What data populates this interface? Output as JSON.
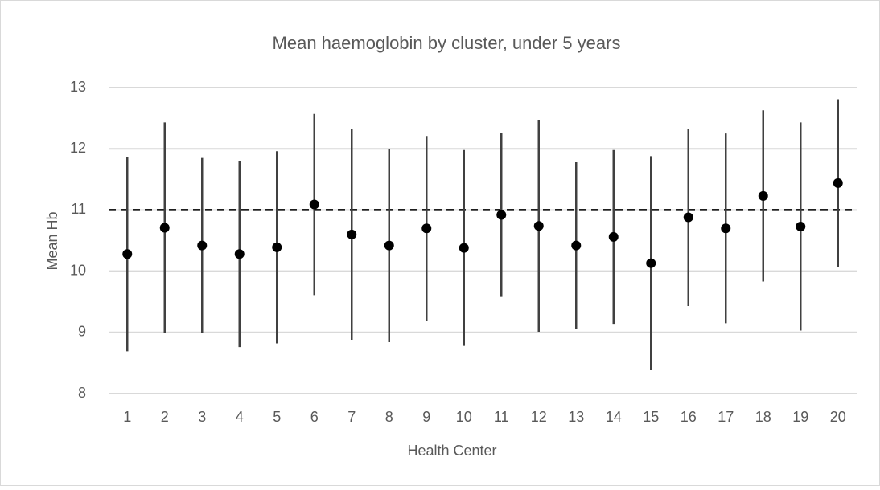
{
  "chart_data": {
    "type": "errorbar",
    "title": "Mean  haemoglobin by cluster, under 5 years",
    "x_label": "Health Center",
    "y_label": "Mean Hb",
    "categories": [
      "1",
      "2",
      "3",
      "4",
      "5",
      "6",
      "7",
      "8",
      "9",
      "10",
      "11",
      "12",
      "13",
      "14",
      "15",
      "16",
      "17",
      "18",
      "19",
      "20"
    ],
    "values": [
      10.28,
      10.71,
      10.42,
      10.28,
      10.39,
      11.09,
      10.6,
      10.42,
      10.7,
      10.38,
      10.92,
      10.74,
      10.42,
      10.56,
      10.13,
      10.88,
      10.7,
      11.23,
      10.73,
      11.44
    ],
    "errors": [
      1.59,
      1.72,
      1.43,
      1.52,
      1.57,
      1.48,
      1.72,
      1.58,
      1.51,
      1.6,
      1.34,
      1.73,
      1.36,
      1.42,
      1.75,
      1.45,
      1.55,
      1.4,
      1.7,
      1.37
    ],
    "color": "#000000",
    "bar_color": "#404040",
    "reference_line": 11,
    "ylim": [
      8,
      13
    ],
    "yticks": [
      8,
      9,
      10,
      11,
      12,
      13
    ],
    "grid": true
  }
}
